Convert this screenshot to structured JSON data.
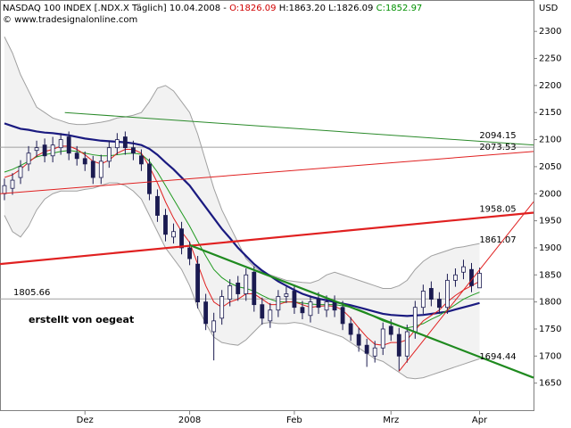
{
  "chart_data": {
    "type": "candlestick",
    "header": {
      "title": "NASDAQ 100 INDEX [.NDX.X  Täglich] 10.04.2008 - ",
      "open": "O:1826.09",
      "high_low": " H:1863.20 L:1826.09 ",
      "close": "C:1852.97"
    },
    "source": "© www.tradesignalonline.com",
    "currency": "USD",
    "annotation": "erstellt von oegeat",
    "categories": [
      null,
      null,
      null,
      null,
      null,
      null,
      null,
      null,
      null,
      null,
      "Dez",
      null,
      null,
      null,
      null,
      null,
      null,
      null,
      null,
      null,
      null,
      null,
      null,
      "2008",
      null,
      null,
      null,
      null,
      null,
      null,
      null,
      null,
      null,
      null,
      null,
      null,
      "Feb",
      null,
      null,
      null,
      null,
      null,
      null,
      null,
      null,
      null,
      null,
      null,
      "Mrz",
      null,
      null,
      null,
      null,
      null,
      null,
      null,
      null,
      null,
      null,
      "Apr"
    ],
    "xlim": [
      -0.55,
      65.7
    ],
    "ylim": [
      1600,
      2358
    ],
    "yticks": [
      1650,
      1700,
      1750,
      1800,
      1850,
      1900,
      1950,
      2000,
      2050,
      2100,
      2150,
      2200,
      2250,
      2300
    ],
    "open": [
      2000,
      2010,
      2030,
      2055,
      2080,
      2090,
      2070,
      2085,
      2105,
      2075,
      2065,
      2060,
      2030,
      2060,
      2085,
      2105,
      2085,
      2070,
      2055,
      1995,
      1960,
      1920,
      1935,
      1900,
      1870,
      1800,
      1745,
      1770,
      1805,
      1835,
      1815,
      1855,
      1795,
      1765,
      1785,
      1810,
      1820,
      1790,
      1775,
      1805,
      1785,
      1800,
      1790,
      1760,
      1740,
      1720,
      1700,
      1715,
      1755,
      1740,
      1700,
      1745,
      1790,
      1825,
      1805,
      1790,
      1840,
      1855,
      1860,
      1826.09
    ],
    "high": [
      2028,
      2038,
      2062,
      2088,
      2098,
      2102,
      2105,
      2112,
      2115,
      2088,
      2078,
      2070,
      2072,
      2098,
      2112,
      2115,
      2098,
      2082,
      2065,
      2008,
      1972,
      1945,
      1948,
      1912,
      1885,
      1815,
      1780,
      1822,
      1842,
      1848,
      1862,
      1866,
      1808,
      1798,
      1822,
      1828,
      1832,
      1802,
      1812,
      1818,
      1812,
      1812,
      1802,
      1772,
      1752,
      1732,
      1728,
      1762,
      1768,
      1752,
      1758,
      1802,
      1832,
      1838,
      1818,
      1852,
      1862,
      1878,
      1872,
      1863.2
    ],
    "low": [
      1988,
      1998,
      2018,
      2042,
      2068,
      2058,
      2058,
      2072,
      2062,
      2052,
      2042,
      2018,
      2018,
      2048,
      2072,
      2072,
      2062,
      2042,
      1988,
      1948,
      1912,
      1908,
      1888,
      1868,
      1788,
      1748,
      1692,
      1758,
      1792,
      1802,
      1802,
      1782,
      1758,
      1752,
      1772,
      1798,
      1778,
      1768,
      1762,
      1778,
      1772,
      1772,
      1748,
      1728,
      1708,
      1680,
      1688,
      1702,
      1728,
      1672,
      1688,
      1732,
      1778,
      1792,
      1778,
      1778,
      1828,
      1842,
      1818,
      1826.09
    ],
    "close": [
      2015,
      2025,
      2050,
      2075,
      2085,
      2070,
      2090,
      2100,
      2075,
      2065,
      2055,
      2030,
      2060,
      2085,
      2100,
      2085,
      2075,
      2055,
      2000,
      1960,
      1925,
      1930,
      1900,
      1880,
      1800,
      1760,
      1765,
      1810,
      1830,
      1815,
      1850,
      1795,
      1770,
      1785,
      1810,
      1815,
      1790,
      1780,
      1800,
      1790,
      1800,
      1785,
      1760,
      1740,
      1720,
      1705,
      1715,
      1750,
      1740,
      1700,
      1745,
      1790,
      1820,
      1805,
      1790,
      1840,
      1850,
      1865,
      1830,
      1852.97
    ],
    "band_color": "#a0a0a0",
    "band_fill": "#f2f2f2",
    "bands": {
      "upper": [
        2290,
        2260,
        2220,
        2190,
        2160,
        2150,
        2140,
        2135,
        2130,
        2128,
        2128,
        2130,
        2132,
        2135,
        2140,
        2142,
        2145,
        2150,
        2170,
        2195,
        2200,
        2190,
        2170,
        2150,
        2110,
        2060,
        2010,
        1970,
        1940,
        1910,
        1880,
        1865,
        1855,
        1850,
        1845,
        1840,
        1838,
        1836,
        1835,
        1840,
        1850,
        1855,
        1850,
        1845,
        1840,
        1835,
        1830,
        1825,
        1825,
        1830,
        1840,
        1860,
        1875,
        1885,
        1890,
        1895,
        1900,
        1902,
        1905,
        1908
      ],
      "lower": [
        1960,
        1930,
        1920,
        1940,
        1970,
        1990,
        2000,
        2005,
        2005,
        2005,
        2008,
        2010,
        2015,
        2020,
        2020,
        2015,
        2005,
        1990,
        1960,
        1930,
        1900,
        1880,
        1860,
        1830,
        1790,
        1760,
        1735,
        1725,
        1722,
        1720,
        1730,
        1745,
        1760,
        1762,
        1760,
        1760,
        1762,
        1760,
        1755,
        1750,
        1745,
        1740,
        1735,
        1725,
        1715,
        1705,
        1695,
        1690,
        1680,
        1670,
        1660,
        1658,
        1660,
        1665,
        1670,
        1675,
        1680,
        1685,
        1690,
        1695
      ]
    },
    "series": [
      {
        "color": "#1a1a80",
        "width": 2.2,
        "values": [
          2130,
          2125,
          2120,
          2118,
          2115,
          2113,
          2112,
          2110,
          2108,
          2105,
          2102,
          2100,
          2098,
          2097,
          2096,
          2095,
          2093,
          2090,
          2083,
          2072,
          2058,
          2045,
          2030,
          2015,
          1995,
          1975,
          1955,
          1935,
          1918,
          1900,
          1885,
          1870,
          1858,
          1848,
          1838,
          1830,
          1822,
          1815,
          1810,
          1806,
          1803,
          1800,
          1797,
          1794,
          1790,
          1786,
          1782,
          1778,
          1776,
          1775,
          1774,
          1775,
          1776,
          1778,
          1780,
          1782,
          1786,
          1790,
          1794,
          1798
        ]
      },
      {
        "color": "#1f9a1f",
        "width": 1,
        "values": [
          2040,
          2045,
          2052,
          2060,
          2068,
          2072,
          2075,
          2078,
          2080,
          2078,
          2075,
          2072,
          2070,
          2070,
          2072,
          2074,
          2075,
          2073,
          2060,
          2040,
          2015,
          1990,
          1965,
          1940,
          1912,
          1885,
          1860,
          1845,
          1835,
          1828,
          1825,
          1820,
          1812,
          1805,
          1800,
          1800,
          1800,
          1798,
          1796,
          1795,
          1795,
          1795,
          1793,
          1790,
          1786,
          1780,
          1772,
          1765,
          1760,
          1755,
          1752,
          1755,
          1760,
          1768,
          1775,
          1785,
          1795,
          1805,
          1812,
          1818
        ]
      },
      {
        "color": "#e02020",
        "width": 1,
        "values": [
          2030,
          2035,
          2045,
          2058,
          2070,
          2078,
          2082,
          2088,
          2088,
          2082,
          2072,
          2060,
          2055,
          2062,
          2075,
          2082,
          2082,
          2075,
          2050,
          2020,
          1985,
          1955,
          1930,
          1910,
          1870,
          1830,
          1800,
          1790,
          1800,
          1805,
          1815,
          1815,
          1805,
          1795,
          1795,
          1800,
          1800,
          1795,
          1790,
          1792,
          1793,
          1792,
          1785,
          1770,
          1752,
          1735,
          1722,
          1720,
          1725,
          1725,
          1730,
          1748,
          1765,
          1775,
          1785,
          1800,
          1812,
          1822,
          1830,
          1838
        ]
      }
    ],
    "trendlines": [
      {
        "x": [
          7.5,
          65.7
        ],
        "y": [
          2150,
          2090
        ],
        "color": "#2a8a2a",
        "width": 1,
        "label": "2094.15"
      },
      {
        "x": [
          -0.55,
          65.7
        ],
        "y": [
          2000,
          2078
        ],
        "color": "#e02020",
        "width": 1,
        "label": "2073.53"
      },
      {
        "x": [
          -0.55,
          65.7
        ],
        "y": [
          1870,
          1965
        ],
        "color": "#e02020",
        "width": 2.2,
        "label": "1958.05"
      },
      {
        "x": [
          49,
          65.7
        ],
        "y": [
          1672,
          1985
        ],
        "color": "#e02020",
        "width": 1,
        "label": "1861.07"
      },
      {
        "x": [
          23,
          65.7
        ],
        "y": [
          1905,
          1660
        ],
        "color": "#1f8a1f",
        "width": 2.2,
        "label": "1694.44"
      }
    ],
    "hlines": [
      {
        "value": 1805.66,
        "label": "1805.66"
      },
      {
        "value": 2086
      }
    ]
  }
}
